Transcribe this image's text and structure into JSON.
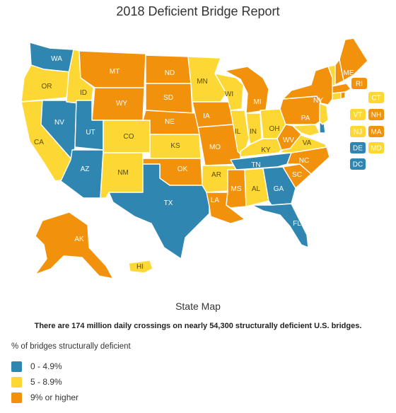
{
  "title": "2018 Deficient Bridge Report",
  "subtitle": "State Map",
  "caption": "There are 174 million daily crossings on nearly 54,300 structurally deficient U.S. bridges.",
  "legend": {
    "title": "% of bridges structurally deficient",
    "items": [
      {
        "label": "0 - 4.9%",
        "color": "#2f86b0"
      },
      {
        "label": "5 - 8.9%",
        "color": "#fdd835"
      },
      {
        "label": "9% or higher",
        "color": "#f2920c"
      }
    ]
  },
  "categories": {
    "low": "#2f86b0",
    "mid": "#fdd835",
    "high": "#f2920c"
  },
  "states": {
    "WA": "low",
    "OR": "mid",
    "CA": "mid",
    "NV": "low",
    "ID": "mid",
    "MT": "high",
    "WY": "high",
    "UT": "low",
    "AZ": "low",
    "CO": "mid",
    "NM": "mid",
    "ND": "high",
    "SD": "high",
    "NE": "high",
    "KS": "mid",
    "OK": "high",
    "TX": "low",
    "MN": "mid",
    "IA": "high",
    "MO": "high",
    "AR": "mid",
    "LA": "high",
    "WI": "mid",
    "IL": "mid",
    "MS": "high",
    "MI": "high",
    "IN": "mid",
    "OH": "mid",
    "KY": "mid",
    "TN": "low",
    "AL": "mid",
    "GA": "low",
    "FL": "low",
    "SC": "high",
    "NC": "high",
    "VA": "mid",
    "WV": "high",
    "PA": "high",
    "NY": "high",
    "ME": "high",
    "AK": "high",
    "HI": "mid",
    "RI": "high",
    "CT": "mid",
    "VT": "mid",
    "NH": "high",
    "NJ": "mid",
    "MA": "high",
    "DE": "low",
    "MD": "mid",
    "DC": "low"
  },
  "small_states": [
    "RI",
    "CT",
    "VT",
    "NH",
    "NJ",
    "MA",
    "DE",
    "MD",
    "DC"
  ]
}
